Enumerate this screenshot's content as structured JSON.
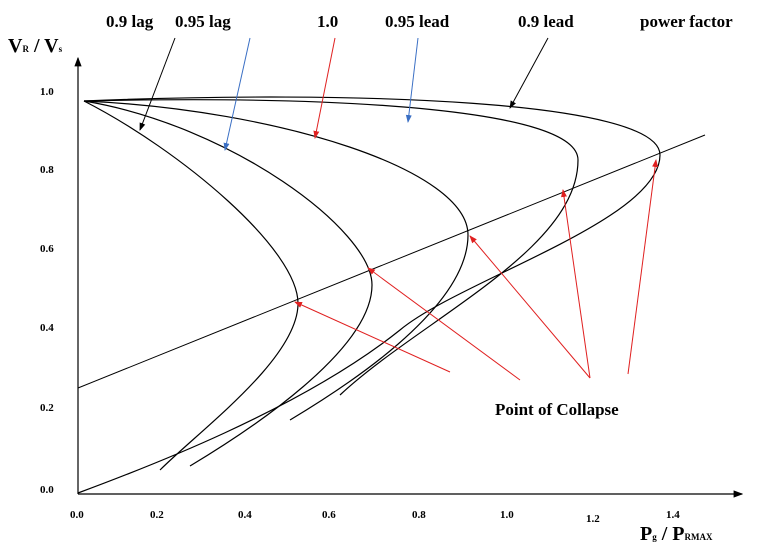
{
  "curve_labels": [
    "0.9 lag",
    "0.95 lag",
    "1.0",
    "0.95 lead",
    "0.9 lead"
  ],
  "legend_title": "power factor",
  "y_axis_label": {
    "main": "V",
    "sub": "R",
    "sep": " / V",
    "sub2": "s"
  },
  "x_axis_label": {
    "main": "P",
    "sub": "g",
    "sep": " / P",
    "sub2": "RMAX"
  },
  "y_ticks": [
    "0.0",
    "0.2",
    "0.4",
    "0.6",
    "0.8",
    "1.0"
  ],
  "x_ticks": [
    "0.0",
    "0.2",
    "0.4",
    "0.6",
    "0.8",
    "1.0",
    "1.2",
    "1.4"
  ],
  "annotation": "Point of  Collapse"
}
